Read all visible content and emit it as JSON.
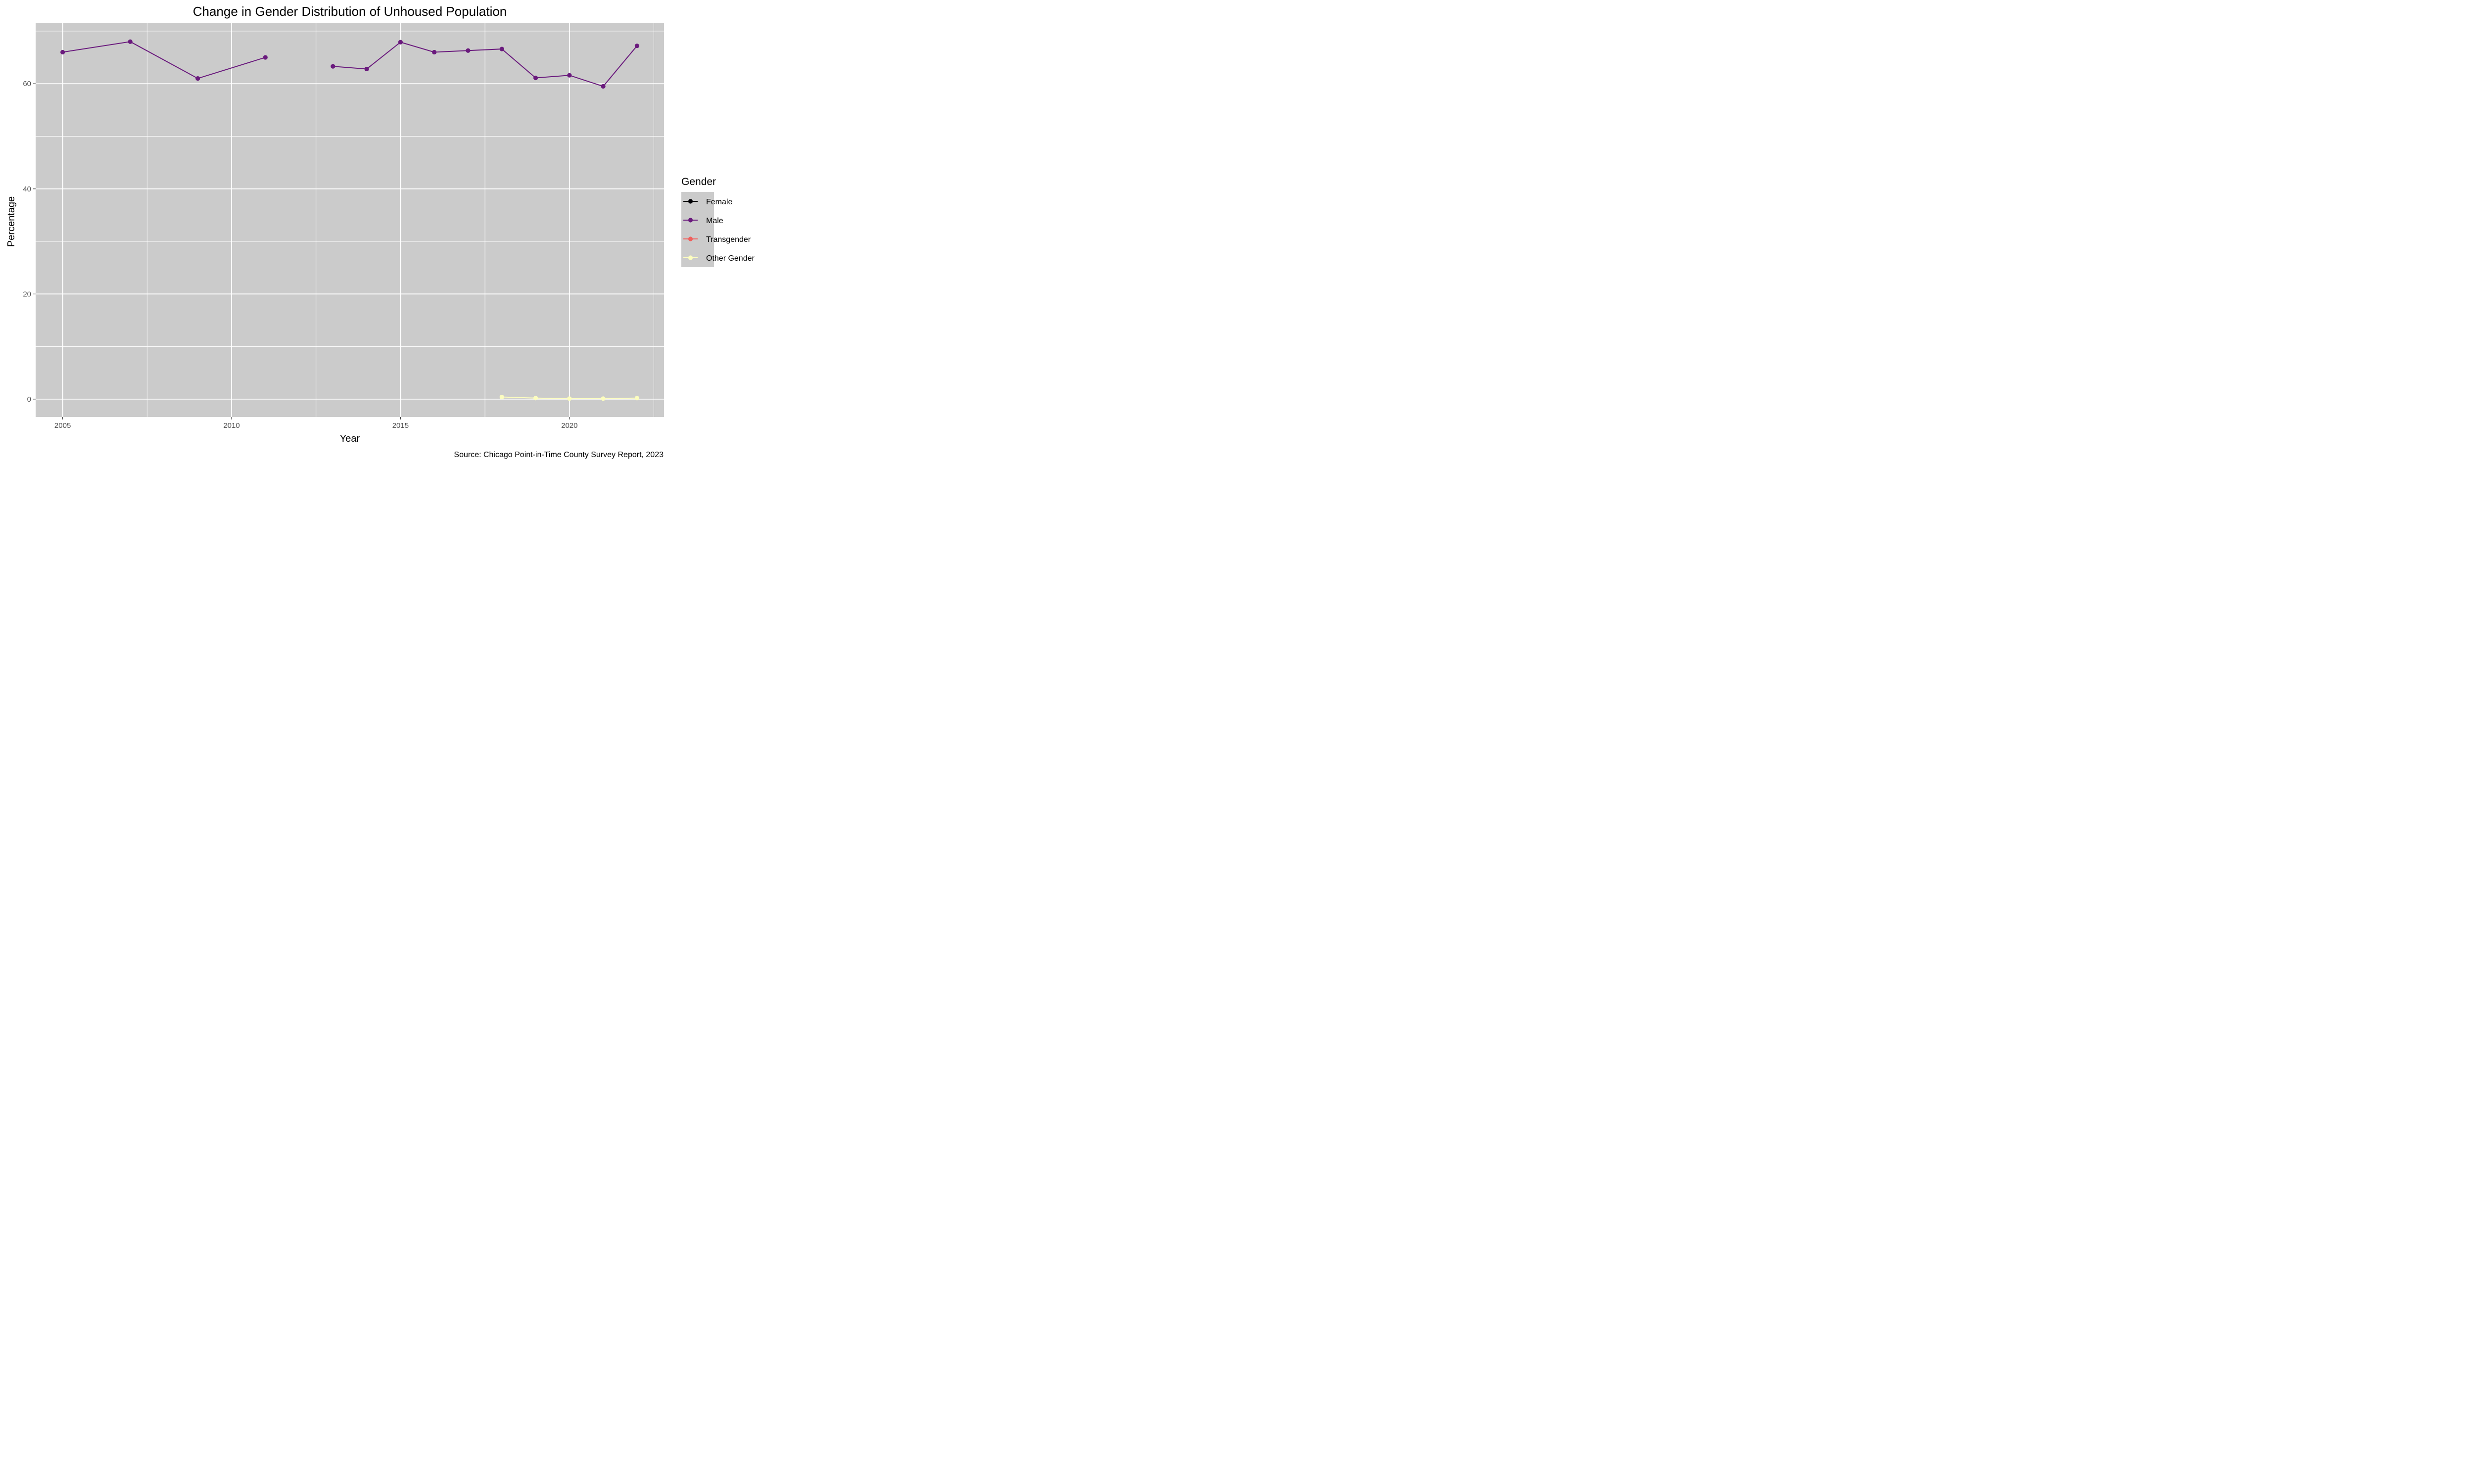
{
  "chart_data": {
    "type": "line",
    "title": "Change in Gender Distribution of Unhoused Population",
    "xlabel": "Year",
    "ylabel": "Percentage",
    "caption": "Source: Chicago Point-in-Time County Survey Report, 2023",
    "xlim": [
      2004.2,
      2022.8
    ],
    "ylim": [
      -3.4,
      71.5
    ],
    "x_ticks": [
      2005,
      2010,
      2015,
      2020
    ],
    "x_tick_labels": [
      "2005",
      "2010",
      "2015",
      "2020"
    ],
    "y_ticks": [
      0,
      20,
      40,
      60
    ],
    "y_tick_labels": [
      "0",
      "20",
      "40",
      "60"
    ],
    "grid": true,
    "panel_background": "#cbcbcb",
    "legend": {
      "title": "Gender",
      "placement": "right",
      "background": "#cbcbcb"
    },
    "series": [
      {
        "name": "Female",
        "color": "#000004",
        "points": []
      },
      {
        "name": "Male",
        "color": "#6a1a7d",
        "points": [
          {
            "x": 2005,
            "y": 66.0
          },
          {
            "x": 2007,
            "y": 68.0
          },
          {
            "x": 2009,
            "y": 61.0
          },
          {
            "x": 2011,
            "y": 65.0
          },
          {
            "x": 2012,
            "y": null
          },
          {
            "x": 2013,
            "y": 63.3
          },
          {
            "x": 2014,
            "y": 62.8
          },
          {
            "x": 2015,
            "y": 67.9
          },
          {
            "x": 2016,
            "y": 66.0
          },
          {
            "x": 2017,
            "y": 66.3
          },
          {
            "x": 2018,
            "y": 66.6
          },
          {
            "x": 2019,
            "y": 61.1
          },
          {
            "x": 2020,
            "y": 61.6
          },
          {
            "x": 2021,
            "y": 59.5
          },
          {
            "x": 2022,
            "y": 67.2
          }
        ]
      },
      {
        "name": "Transgender",
        "color": "#f0605d",
        "points": []
      },
      {
        "name": "Other Gender",
        "color": "#fcfdbf",
        "points": [
          {
            "x": 2018,
            "y": 0.4
          },
          {
            "x": 2019,
            "y": 0.2
          },
          {
            "x": 2020,
            "y": 0.1
          },
          {
            "x": 2021,
            "y": 0.1
          },
          {
            "x": 2022,
            "y": 0.2
          }
        ]
      }
    ]
  }
}
